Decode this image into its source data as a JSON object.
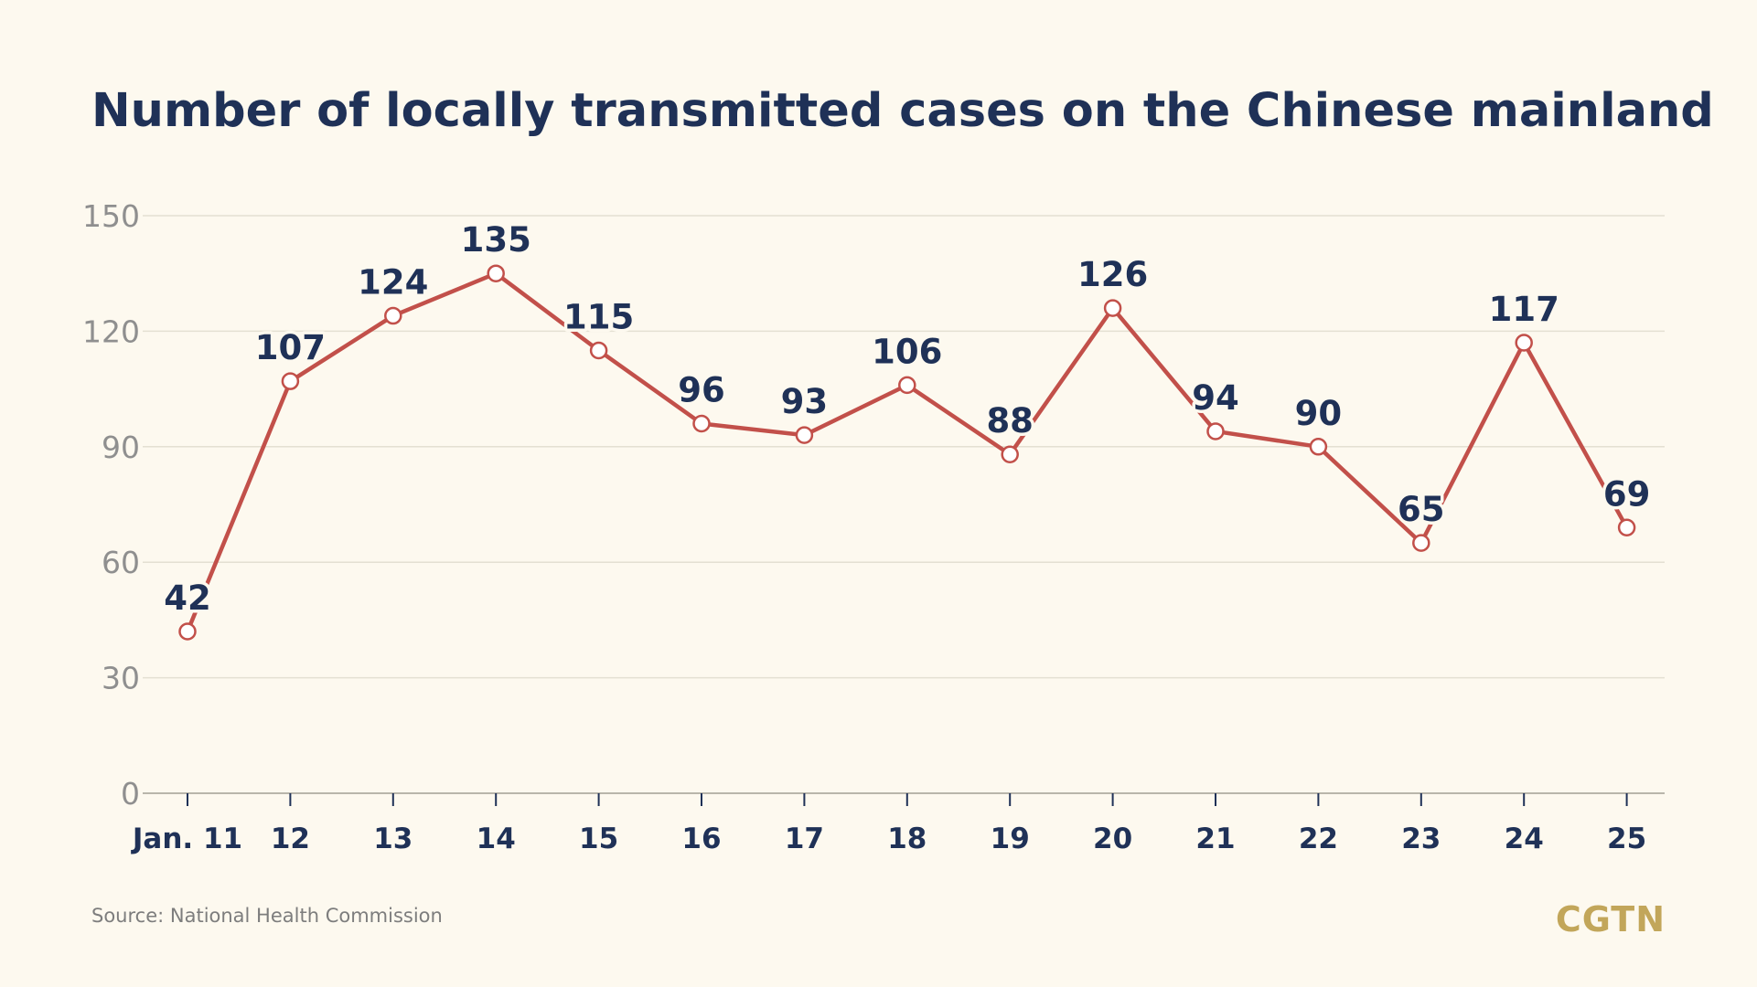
{
  "chart_data": {
    "type": "line",
    "title": "Number of locally transmitted cases on the Chinese mainland",
    "xlabel": "",
    "ylabel": "",
    "categories": [
      "Jan. 11",
      "12",
      "13",
      "14",
      "15",
      "16",
      "17",
      "18",
      "19",
      "20",
      "21",
      "22",
      "23",
      "24",
      "25"
    ],
    "series": [
      {
        "values": [
          42,
          107,
          124,
          135,
          115,
          96,
          93,
          106,
          88,
          126,
          94,
          90,
          65,
          117,
          69
        ],
        "color": "#c2504a"
      }
    ],
    "ylim": [
      0,
      150
    ],
    "yticks": [
      0,
      30,
      60,
      90,
      120,
      150
    ],
    "grid": true,
    "legend": "none",
    "line_color": "#c2504a",
    "marker_fill": "#ffffff",
    "label_color": "#1f3157",
    "axis_label_color": "#8f8f8f",
    "gridline_color": "#e4e0d2"
  },
  "source": "Source: National Health Commission",
  "brand": "CGTN"
}
